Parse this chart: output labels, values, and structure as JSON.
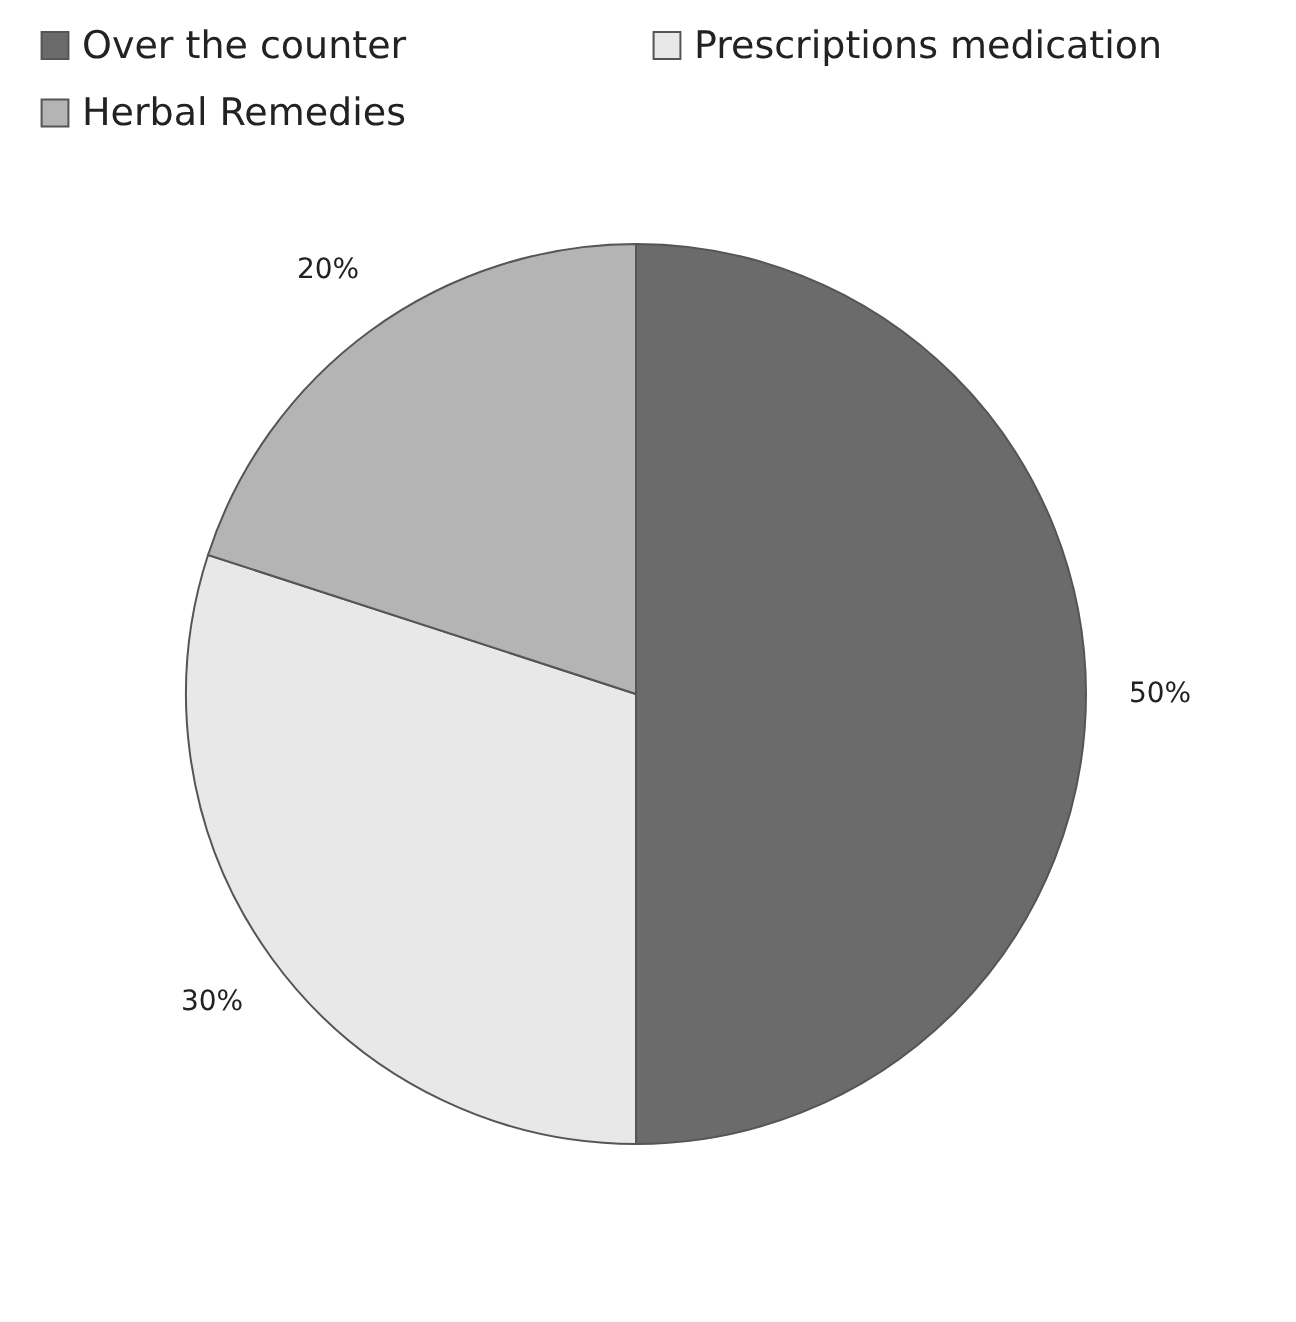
{
  "chart_data": {
    "type": "pie",
    "categories": [
      "Over the counter",
      "Prescriptions medication",
      "Herbal Remedies"
    ],
    "values": [
      50,
      30,
      20
    ],
    "colors": [
      "#6b6b6b",
      "#e8e8e8",
      "#b4b4b4"
    ],
    "value_labels": [
      "50%",
      "30%",
      "20%"
    ],
    "legend": "top left"
  }
}
